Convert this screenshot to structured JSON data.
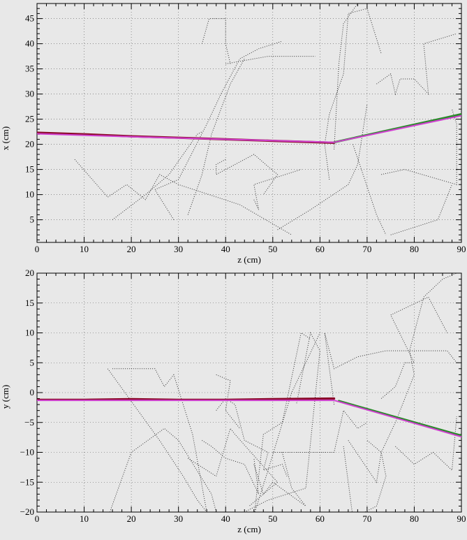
{
  "colors": {
    "background": "#e8e8e8",
    "axis": "#000000",
    "track_red": "#8b0a2a",
    "track_magenta": "#d040d0",
    "track_green": "#2a8a2a",
    "scatter": "#333333"
  },
  "chart_data": [
    {
      "type": "line",
      "xlabel": "z (cm)",
      "ylabel": "x (cm)",
      "xlim": [
        0,
        90
      ],
      "ylim": [
        0.5,
        48
      ],
      "x_ticks": [
        0,
        10,
        20,
        30,
        40,
        50,
        60,
        70,
        80,
        90
      ],
      "y_ticks": [
        5,
        10,
        15,
        20,
        25,
        30,
        35,
        40,
        45
      ],
      "x_tick_labels": [
        "0",
        "10",
        "20",
        "30",
        "40",
        "50",
        "60",
        "70",
        "80",
        "90"
      ],
      "y_tick_labels": [
        "5",
        "10",
        "15",
        "20",
        "25",
        "30",
        "35",
        "40",
        "45"
      ],
      "grid": true,
      "tracks": [
        {
          "style": "red",
          "x": [
            0,
            10,
            20,
            30,
            40,
            50,
            63
          ],
          "y": [
            22.3,
            22.0,
            21.6,
            21.3,
            21.0,
            20.7,
            20.3
          ]
        },
        {
          "style": "magenta",
          "x": [
            0,
            20,
            40,
            63,
            90
          ],
          "y": [
            22.1,
            21.5,
            21.0,
            20.4,
            25.7
          ]
        },
        {
          "style": "green",
          "x": [
            63,
            90
          ],
          "y": [
            20.4,
            26.0
          ]
        }
      ],
      "scatter_paths": [
        [
          [
            8,
            17
          ],
          [
            15,
            9.5
          ],
          [
            19,
            12
          ],
          [
            23,
            9
          ],
          [
            26,
            14
          ],
          [
            30,
            12
          ],
          [
            43,
            8
          ],
          [
            54,
            2
          ]
        ],
        [
          [
            16,
            5
          ],
          [
            23,
            10
          ],
          [
            28,
            14
          ],
          [
            34,
            22
          ],
          [
            35,
            22.5
          ]
        ],
        [
          [
            29,
            5
          ],
          [
            25,
            11
          ],
          [
            30,
            13
          ],
          [
            36,
            24
          ],
          [
            39,
            30
          ],
          [
            43,
            37
          ],
          [
            47,
            39
          ],
          [
            52,
            40.5
          ]
        ],
        [
          [
            35,
            40
          ],
          [
            36.5,
            45
          ],
          [
            40,
            45
          ],
          [
            40,
            40
          ],
          [
            41,
            36
          ]
        ],
        [
          [
            40,
            36
          ],
          [
            49,
            37.5
          ],
          [
            59,
            37.5
          ]
        ],
        [
          [
            32,
            6
          ],
          [
            35,
            14
          ],
          [
            37,
            22
          ],
          [
            41,
            32
          ],
          [
            44,
            37
          ]
        ],
        [
          [
            40,
            17
          ],
          [
            38,
            16
          ],
          [
            38,
            14
          ],
          [
            46,
            18
          ],
          [
            51,
            14
          ],
          [
            48,
            10
          ]
        ],
        [
          [
            46,
            9
          ],
          [
            47,
            7
          ],
          [
            46,
            12
          ],
          [
            56,
            15
          ]
        ],
        [
          [
            51,
            3
          ],
          [
            58,
            7
          ],
          [
            66,
            12
          ],
          [
            68,
            16
          ],
          [
            70,
            28
          ]
        ],
        [
          [
            62,
            13
          ],
          [
            61,
            20
          ],
          [
            62,
            26
          ],
          [
            65,
            34
          ],
          [
            66,
            46
          ],
          [
            70,
            47
          ],
          [
            73,
            38
          ]
        ],
        [
          [
            63,
            19
          ],
          [
            64,
            36
          ],
          [
            65,
            44
          ],
          [
            68,
            48
          ]
        ],
        [
          [
            67,
            20
          ],
          [
            72,
            6
          ],
          [
            74,
            2
          ]
        ],
        [
          [
            73,
            14
          ],
          [
            78,
            15
          ],
          [
            89,
            12
          ],
          [
            89,
            24
          ],
          [
            88,
            27
          ]
        ],
        [
          [
            72,
            32
          ],
          [
            75,
            34
          ],
          [
            76,
            30
          ],
          [
            77,
            33
          ],
          [
            80,
            33
          ],
          [
            83,
            30
          ],
          [
            82,
            40
          ],
          [
            89,
            42
          ]
        ],
        [
          [
            75,
            2
          ],
          [
            85,
            5
          ],
          [
            88,
            12
          ]
        ]
      ]
    },
    {
      "type": "line",
      "xlabel": "z (cm)",
      "ylabel": "y (cm)",
      "xlim": [
        0,
        90
      ],
      "ylim": [
        -20,
        20
      ],
      "x_ticks": [
        0,
        10,
        20,
        30,
        40,
        50,
        60,
        70,
        80,
        90
      ],
      "y_ticks": [
        -20,
        -15,
        -10,
        -5,
        0,
        5,
        10,
        15,
        20
      ],
      "x_tick_labels": [
        "0",
        "10",
        "20",
        "30",
        "40",
        "50",
        "60",
        "70",
        "80",
        "90"
      ],
      "y_tick_labels": [
        "−20",
        "−15",
        "−10",
        "−5",
        "0",
        "5",
        "10",
        "15",
        "20"
      ],
      "grid": true,
      "tracks": [
        {
          "style": "red",
          "x": [
            0,
            10,
            20,
            30,
            40,
            50,
            63
          ],
          "y": [
            -1.2,
            -1.2,
            -1.1,
            -1.2,
            -1.2,
            -1.1,
            -1.0
          ]
        },
        {
          "style": "magenta",
          "x": [
            0,
            20,
            40,
            63,
            90
          ],
          "y": [
            -1.3,
            -1.3,
            -1.3,
            -1.3,
            -7.4
          ]
        },
        {
          "style": "green",
          "x": [
            64,
            90
          ],
          "y": [
            -1.4,
            -7.2
          ]
        }
      ],
      "scatter_paths": [
        [
          [
            16,
            4
          ],
          [
            25,
            4
          ],
          [
            27,
            1
          ],
          [
            29,
            3
          ],
          [
            33,
            -7
          ],
          [
            36,
            -20
          ]
        ],
        [
          [
            15,
            4
          ],
          [
            26,
            -8
          ],
          [
            31,
            -14
          ],
          [
            34,
            -18
          ],
          [
            36,
            -20
          ]
        ],
        [
          [
            15,
            -21
          ],
          [
            20,
            -10
          ],
          [
            27,
            -6
          ],
          [
            30,
            -8
          ],
          [
            37,
            -17
          ],
          [
            38,
            -20
          ]
        ],
        [
          [
            32,
            -11
          ],
          [
            38,
            -14
          ],
          [
            41,
            -6
          ],
          [
            42,
            -7
          ],
          [
            51,
            -15
          ],
          [
            45,
            -19
          ]
        ],
        [
          [
            35,
            -8
          ],
          [
            37,
            -9
          ],
          [
            40,
            -11
          ],
          [
            44,
            -12
          ],
          [
            47,
            -17
          ],
          [
            46,
            -11
          ]
        ],
        [
          [
            38,
            -3
          ],
          [
            40,
            -1
          ],
          [
            42,
            -2
          ],
          [
            44,
            -8
          ],
          [
            49,
            -10
          ],
          [
            48,
            -13
          ],
          [
            52,
            -12
          ],
          [
            53,
            -14
          ]
        ],
        [
          [
            38,
            3
          ],
          [
            41,
            2
          ],
          [
            40,
            -3
          ],
          [
            43,
            -6
          ]
        ],
        [
          [
            46,
            -12
          ],
          [
            48,
            -17
          ],
          [
            50,
            -15
          ],
          [
            57,
            -19
          ],
          [
            54,
            -16
          ],
          [
            52,
            -10
          ]
        ],
        [
          [
            44,
            -20
          ],
          [
            49,
            -18
          ],
          [
            57,
            -16
          ],
          [
            60,
            7
          ],
          [
            58,
            10
          ],
          [
            55,
            -2
          ]
        ],
        [
          [
            46,
            -21
          ],
          [
            48,
            -7
          ],
          [
            52,
            -5
          ],
          [
            56,
            10
          ],
          [
            58,
            9
          ]
        ],
        [
          [
            45,
            -23
          ],
          [
            49,
            -13
          ],
          [
            54,
            0
          ],
          [
            60,
            10
          ]
        ],
        [
          [
            50,
            -10
          ],
          [
            63,
            -10
          ],
          [
            65,
            -3
          ],
          [
            68,
            -6
          ],
          [
            70,
            -5
          ]
        ],
        [
          [
            63,
            -2
          ],
          [
            61,
            10
          ],
          [
            63,
            4
          ],
          [
            68,
            6
          ],
          [
            74,
            7
          ],
          [
            83,
            7
          ],
          [
            87,
            7
          ],
          [
            89,
            5
          ]
        ],
        [
          [
            65,
            -9
          ],
          [
            67,
            -21
          ],
          [
            72,
            -19
          ],
          [
            74,
            -14
          ],
          [
            73,
            -10
          ],
          [
            70,
            -8
          ]
        ],
        [
          [
            66,
            -8
          ],
          [
            72,
            -15
          ],
          [
            73,
            -10
          ],
          [
            76,
            -5
          ],
          [
            80,
            3
          ],
          [
            79,
            7
          ],
          [
            82,
            16
          ],
          [
            86,
            19
          ],
          [
            89,
            20
          ]
        ],
        [
          [
            73,
            -1
          ],
          [
            76,
            1
          ],
          [
            78,
            5
          ],
          [
            80,
            5
          ],
          [
            75,
            13
          ],
          [
            83,
            16
          ],
          [
            87,
            10
          ]
        ],
        [
          [
            76,
            -9
          ],
          [
            80,
            -12
          ],
          [
            84,
            -10
          ],
          [
            88,
            -13
          ],
          [
            89,
            -4
          ]
        ]
      ]
    }
  ]
}
